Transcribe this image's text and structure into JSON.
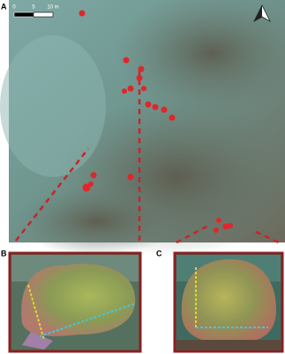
{
  "panels": [
    {
      "label": "A"
    },
    {
      "label": "B"
    },
    {
      "label": "C"
    }
  ],
  "scale_bar": {
    "labels": [
      "0",
      "5",
      "10 m"
    ]
  }
}
